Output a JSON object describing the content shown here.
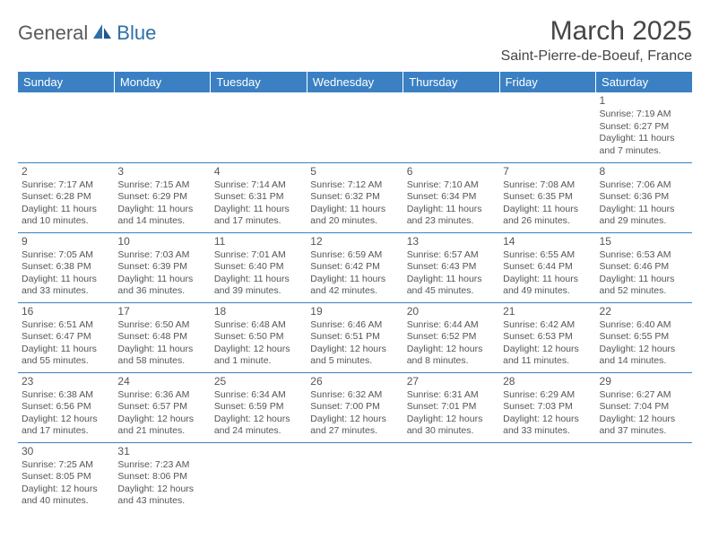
{
  "logo": {
    "part1": "General",
    "part2": "Blue"
  },
  "title": "March 2025",
  "location": "Saint-Pierre-de-Boeuf, France",
  "colors": {
    "header_bg": "#3a80c3",
    "header_text": "#ffffff",
    "border": "#3a80c3",
    "body_text": "#555555",
    "logo_gray": "#5a5a5a",
    "logo_blue": "#2f6fa8"
  },
  "weekdays": [
    "Sunday",
    "Monday",
    "Tuesday",
    "Wednesday",
    "Thursday",
    "Friday",
    "Saturday"
  ],
  "weeks": [
    [
      null,
      null,
      null,
      null,
      null,
      null,
      {
        "n": "1",
        "sr": "Sunrise: 7:19 AM",
        "ss": "Sunset: 6:27 PM",
        "d1": "Daylight: 11 hours",
        "d2": "and 7 minutes."
      }
    ],
    [
      {
        "n": "2",
        "sr": "Sunrise: 7:17 AM",
        "ss": "Sunset: 6:28 PM",
        "d1": "Daylight: 11 hours",
        "d2": "and 10 minutes."
      },
      {
        "n": "3",
        "sr": "Sunrise: 7:15 AM",
        "ss": "Sunset: 6:29 PM",
        "d1": "Daylight: 11 hours",
        "d2": "and 14 minutes."
      },
      {
        "n": "4",
        "sr": "Sunrise: 7:14 AM",
        "ss": "Sunset: 6:31 PM",
        "d1": "Daylight: 11 hours",
        "d2": "and 17 minutes."
      },
      {
        "n": "5",
        "sr": "Sunrise: 7:12 AM",
        "ss": "Sunset: 6:32 PM",
        "d1": "Daylight: 11 hours",
        "d2": "and 20 minutes."
      },
      {
        "n": "6",
        "sr": "Sunrise: 7:10 AM",
        "ss": "Sunset: 6:34 PM",
        "d1": "Daylight: 11 hours",
        "d2": "and 23 minutes."
      },
      {
        "n": "7",
        "sr": "Sunrise: 7:08 AM",
        "ss": "Sunset: 6:35 PM",
        "d1": "Daylight: 11 hours",
        "d2": "and 26 minutes."
      },
      {
        "n": "8",
        "sr": "Sunrise: 7:06 AM",
        "ss": "Sunset: 6:36 PM",
        "d1": "Daylight: 11 hours",
        "d2": "and 29 minutes."
      }
    ],
    [
      {
        "n": "9",
        "sr": "Sunrise: 7:05 AM",
        "ss": "Sunset: 6:38 PM",
        "d1": "Daylight: 11 hours",
        "d2": "and 33 minutes."
      },
      {
        "n": "10",
        "sr": "Sunrise: 7:03 AM",
        "ss": "Sunset: 6:39 PM",
        "d1": "Daylight: 11 hours",
        "d2": "and 36 minutes."
      },
      {
        "n": "11",
        "sr": "Sunrise: 7:01 AM",
        "ss": "Sunset: 6:40 PM",
        "d1": "Daylight: 11 hours",
        "d2": "and 39 minutes."
      },
      {
        "n": "12",
        "sr": "Sunrise: 6:59 AM",
        "ss": "Sunset: 6:42 PM",
        "d1": "Daylight: 11 hours",
        "d2": "and 42 minutes."
      },
      {
        "n": "13",
        "sr": "Sunrise: 6:57 AM",
        "ss": "Sunset: 6:43 PM",
        "d1": "Daylight: 11 hours",
        "d2": "and 45 minutes."
      },
      {
        "n": "14",
        "sr": "Sunrise: 6:55 AM",
        "ss": "Sunset: 6:44 PM",
        "d1": "Daylight: 11 hours",
        "d2": "and 49 minutes."
      },
      {
        "n": "15",
        "sr": "Sunrise: 6:53 AM",
        "ss": "Sunset: 6:46 PM",
        "d1": "Daylight: 11 hours",
        "d2": "and 52 minutes."
      }
    ],
    [
      {
        "n": "16",
        "sr": "Sunrise: 6:51 AM",
        "ss": "Sunset: 6:47 PM",
        "d1": "Daylight: 11 hours",
        "d2": "and 55 minutes."
      },
      {
        "n": "17",
        "sr": "Sunrise: 6:50 AM",
        "ss": "Sunset: 6:48 PM",
        "d1": "Daylight: 11 hours",
        "d2": "and 58 minutes."
      },
      {
        "n": "18",
        "sr": "Sunrise: 6:48 AM",
        "ss": "Sunset: 6:50 PM",
        "d1": "Daylight: 12 hours",
        "d2": "and 1 minute."
      },
      {
        "n": "19",
        "sr": "Sunrise: 6:46 AM",
        "ss": "Sunset: 6:51 PM",
        "d1": "Daylight: 12 hours",
        "d2": "and 5 minutes."
      },
      {
        "n": "20",
        "sr": "Sunrise: 6:44 AM",
        "ss": "Sunset: 6:52 PM",
        "d1": "Daylight: 12 hours",
        "d2": "and 8 minutes."
      },
      {
        "n": "21",
        "sr": "Sunrise: 6:42 AM",
        "ss": "Sunset: 6:53 PM",
        "d1": "Daylight: 12 hours",
        "d2": "and 11 minutes."
      },
      {
        "n": "22",
        "sr": "Sunrise: 6:40 AM",
        "ss": "Sunset: 6:55 PM",
        "d1": "Daylight: 12 hours",
        "d2": "and 14 minutes."
      }
    ],
    [
      {
        "n": "23",
        "sr": "Sunrise: 6:38 AM",
        "ss": "Sunset: 6:56 PM",
        "d1": "Daylight: 12 hours",
        "d2": "and 17 minutes."
      },
      {
        "n": "24",
        "sr": "Sunrise: 6:36 AM",
        "ss": "Sunset: 6:57 PM",
        "d1": "Daylight: 12 hours",
        "d2": "and 21 minutes."
      },
      {
        "n": "25",
        "sr": "Sunrise: 6:34 AM",
        "ss": "Sunset: 6:59 PM",
        "d1": "Daylight: 12 hours",
        "d2": "and 24 minutes."
      },
      {
        "n": "26",
        "sr": "Sunrise: 6:32 AM",
        "ss": "Sunset: 7:00 PM",
        "d1": "Daylight: 12 hours",
        "d2": "and 27 minutes."
      },
      {
        "n": "27",
        "sr": "Sunrise: 6:31 AM",
        "ss": "Sunset: 7:01 PM",
        "d1": "Daylight: 12 hours",
        "d2": "and 30 minutes."
      },
      {
        "n": "28",
        "sr": "Sunrise: 6:29 AM",
        "ss": "Sunset: 7:03 PM",
        "d1": "Daylight: 12 hours",
        "d2": "and 33 minutes."
      },
      {
        "n": "29",
        "sr": "Sunrise: 6:27 AM",
        "ss": "Sunset: 7:04 PM",
        "d1": "Daylight: 12 hours",
        "d2": "and 37 minutes."
      }
    ],
    [
      {
        "n": "30",
        "sr": "Sunrise: 7:25 AM",
        "ss": "Sunset: 8:05 PM",
        "d1": "Daylight: 12 hours",
        "d2": "and 40 minutes."
      },
      {
        "n": "31",
        "sr": "Sunrise: 7:23 AM",
        "ss": "Sunset: 8:06 PM",
        "d1": "Daylight: 12 hours",
        "d2": "and 43 minutes."
      },
      null,
      null,
      null,
      null,
      null
    ]
  ]
}
